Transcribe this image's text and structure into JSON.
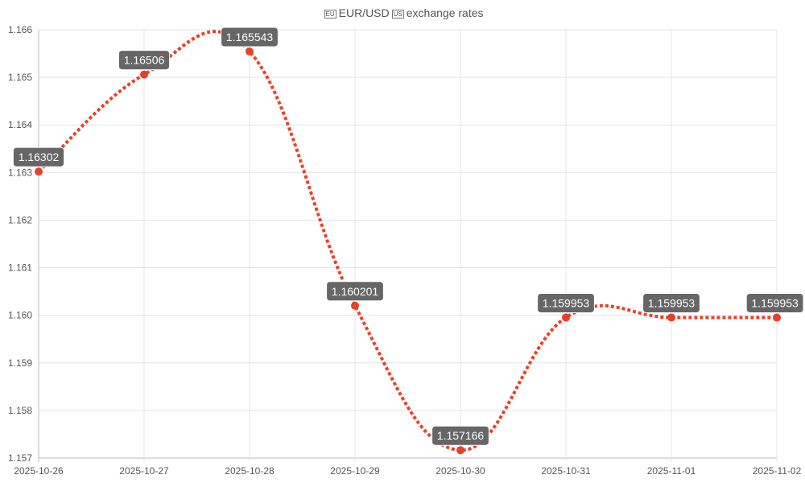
{
  "title": {
    "flag1": "EU",
    "text1": "EUR/USD",
    "flag2": "US",
    "text2": "exchange rates"
  },
  "chart_data": {
    "type": "line",
    "title": "EUR/USD exchange rates",
    "x": [
      "2025-10-26",
      "2025-10-27",
      "2025-10-28",
      "2025-10-29",
      "2025-10-30",
      "2025-10-31",
      "2025-11-01",
      "2025-11-02"
    ],
    "series": [
      {
        "name": "EUR/USD",
        "values": [
          1.16302,
          1.16506,
          1.165543,
          1.160201,
          1.157166,
          1.159953,
          1.159953,
          1.159953
        ],
        "color": "#e8412b"
      }
    ],
    "data_labels": [
      "1.16302",
      "1.16506",
      "1.165543",
      "1.160201",
      "1.157166",
      "1.159953",
      "1.159953",
      "1.159953"
    ],
    "yticks": [
      "1.157",
      "1.158",
      "1.159",
      "1.160",
      "1.161",
      "1.162",
      "1.163",
      "1.164",
      "1.165",
      "1.166"
    ],
    "ylim": [
      1.157,
      1.166
    ],
    "grid": true,
    "line_style": "dotted"
  }
}
